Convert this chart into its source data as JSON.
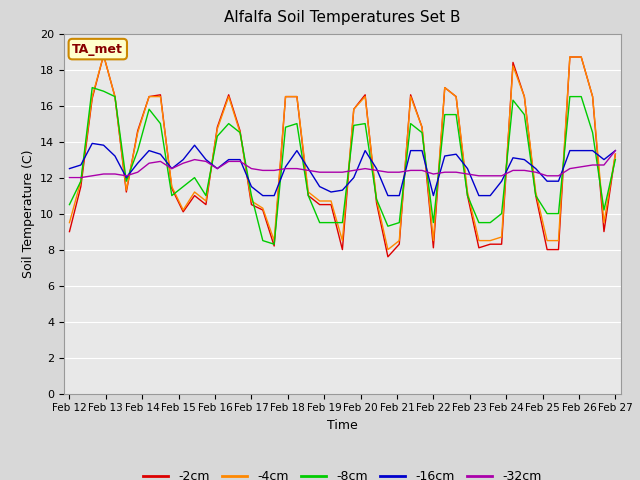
{
  "title": "Alfalfa Soil Temperatures Set B",
  "xlabel": "Time",
  "ylabel": "Soil Temperature (C)",
  "ylim": [
    0,
    20
  ],
  "yticks": [
    0,
    2,
    4,
    6,
    8,
    10,
    12,
    14,
    16,
    18,
    20
  ],
  "annotation_text": "TA_met",
  "annotation_bg": "#ffffcc",
  "annotation_border": "#cc8800",
  "fig_facecolor": "#d8d8d8",
  "ax_facecolor": "#e8e8e8",
  "grid_color": "#ffffff",
  "series_colors": {
    "-2cm": "#dd0000",
    "-4cm": "#ff8800",
    "-8cm": "#00cc00",
    "-16cm": "#0000cc",
    "-32cm": "#aa00aa"
  },
  "x_labels": [
    "Feb 12",
    "Feb 13",
    "Feb 14",
    "Feb 15",
    "Feb 16",
    "Feb 17",
    "Feb 18",
    "Feb 19",
    "Feb 20",
    "Feb 21",
    "Feb 22",
    "Feb 23",
    "Feb 24",
    "Feb 25",
    "Feb 26",
    "Feb 27"
  ],
  "n_days": 15,
  "series": {
    "-2cm": [
      9.0,
      11.5,
      16.4,
      18.8,
      16.5,
      11.2,
      14.6,
      16.5,
      16.6,
      11.4,
      10.1,
      11.0,
      10.5,
      14.8,
      16.6,
      14.6,
      10.5,
      10.2,
      8.2,
      16.5,
      16.5,
      11.0,
      10.5,
      10.5,
      8.0,
      15.8,
      16.6,
      10.6,
      7.6,
      8.3,
      16.6,
      14.8,
      8.1,
      17.0,
      16.5,
      11.0,
      8.1,
      8.3,
      8.3,
      18.4,
      16.5,
      11.0,
      8.0,
      8.0,
      18.7,
      18.7,
      16.5,
      9.0,
      13.3
    ],
    "-4cm": [
      9.5,
      11.8,
      16.5,
      18.8,
      16.5,
      11.3,
      14.5,
      16.5,
      16.5,
      11.5,
      10.2,
      11.2,
      10.7,
      14.7,
      16.5,
      14.5,
      10.7,
      10.3,
      8.5,
      16.5,
      16.5,
      11.2,
      10.7,
      10.7,
      8.5,
      15.8,
      16.5,
      10.8,
      8.0,
      8.5,
      16.5,
      14.8,
      8.5,
      17.0,
      16.5,
      11.2,
      8.5,
      8.5,
      8.7,
      18.2,
      16.5,
      11.2,
      8.5,
      8.5,
      18.7,
      18.7,
      16.5,
      9.5,
      13.3
    ],
    "-8cm": [
      10.5,
      11.8,
      17.0,
      16.8,
      16.5,
      11.8,
      13.5,
      15.8,
      15.0,
      11.0,
      11.5,
      12.0,
      11.0,
      14.3,
      15.0,
      14.5,
      11.0,
      8.5,
      8.3,
      14.8,
      15.0,
      11.0,
      9.5,
      9.5,
      9.5,
      14.9,
      15.0,
      10.8,
      9.3,
      9.5,
      15.0,
      14.5,
      9.5,
      15.5,
      15.5,
      11.0,
      9.5,
      9.5,
      10.0,
      16.3,
      15.5,
      11.0,
      10.0,
      10.0,
      16.5,
      16.5,
      14.5,
      10.2,
      13.0
    ],
    "-16cm": [
      12.5,
      12.7,
      13.9,
      13.8,
      13.2,
      12.0,
      12.8,
      13.5,
      13.3,
      12.5,
      13.0,
      13.8,
      13.0,
      12.5,
      13.0,
      13.0,
      11.5,
      11.0,
      11.0,
      12.6,
      13.5,
      12.5,
      11.5,
      11.2,
      11.3,
      12.0,
      13.5,
      12.5,
      11.0,
      11.0,
      13.5,
      13.5,
      11.0,
      13.2,
      13.3,
      12.5,
      11.0,
      11.0,
      11.8,
      13.1,
      13.0,
      12.5,
      11.8,
      11.8,
      13.5,
      13.5,
      13.5,
      13.0,
      13.5
    ],
    "-32cm": [
      12.0,
      12.0,
      12.1,
      12.2,
      12.2,
      12.1,
      12.3,
      12.8,
      12.9,
      12.5,
      12.8,
      13.0,
      12.9,
      12.5,
      12.9,
      12.9,
      12.5,
      12.4,
      12.4,
      12.5,
      12.5,
      12.4,
      12.3,
      12.3,
      12.3,
      12.4,
      12.5,
      12.4,
      12.3,
      12.3,
      12.4,
      12.4,
      12.2,
      12.3,
      12.3,
      12.2,
      12.1,
      12.1,
      12.1,
      12.4,
      12.4,
      12.3,
      12.1,
      12.1,
      12.5,
      12.6,
      12.7,
      12.7,
      13.5
    ]
  }
}
